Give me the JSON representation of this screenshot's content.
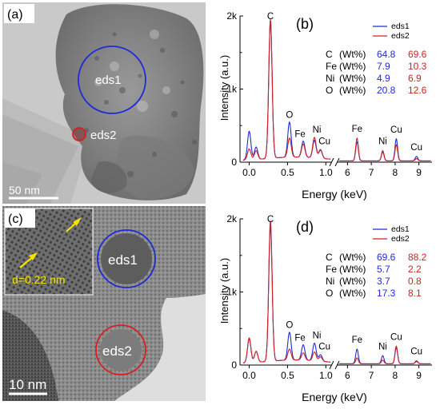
{
  "panels": {
    "a": {
      "label": "(a)",
      "scale_bar": "50 nm",
      "regions": [
        {
          "name": "eds1",
          "color": "#1f2bd6"
        },
        {
          "name": "eds2",
          "color": "#d62020"
        }
      ]
    },
    "c": {
      "label": "(c)",
      "scale_bar": "10 nm",
      "inset_text": "d=0.22 nm",
      "regions": [
        {
          "name": "eds1",
          "color": "#1f2bd6"
        },
        {
          "name": "eds2",
          "color": "#d62020"
        }
      ]
    }
  },
  "chart_data": [
    {
      "type": "line",
      "panel_label": "(b)",
      "xlabel": "Energy (keV)",
      "ylabel": "Intensity (a.u.)",
      "x_ticks": [
        "0.0",
        "0.5",
        "1.0",
        "6",
        "7",
        "8",
        "9"
      ],
      "y_ticks": [
        "0",
        "1k",
        "2k"
      ],
      "ylim": [
        0,
        2000
      ],
      "axis_break": true,
      "legend_position": "top-right",
      "series": [
        {
          "name": "eds1",
          "color": "#1f2bd6"
        },
        {
          "name": "eds2",
          "color": "#d62020"
        }
      ],
      "peaks": [
        {
          "label": "C",
          "energy": 0.277,
          "eds1": 1870,
          "eds2": 1900
        },
        {
          "label": "O",
          "energy": 0.525,
          "eds1": 480,
          "eds2": 260
        },
        {
          "label": "Fe",
          "energy": 0.705,
          "eds1": 220,
          "eds2": 180
        },
        {
          "label": "Ni",
          "energy": 0.851,
          "eds1": 240,
          "eds2": 280
        },
        {
          "label": "Cu",
          "energy": 0.93,
          "eds1": 120,
          "eds2": 110
        },
        {
          "label": "Fe",
          "energy": 6.4,
          "eds1": 260,
          "eds2": 310
        },
        {
          "label": "Ni",
          "energy": 7.48,
          "eds1": 120,
          "eds2": 140
        },
        {
          "label": "Cu",
          "energy": 8.05,
          "eds1": 300,
          "eds2": 220
        },
        {
          "label": "Cu",
          "energy": 8.9,
          "eds1": 60,
          "eds2": 30
        }
      ],
      "extra_peaks": [
        {
          "energy": 0.0,
          "eds1": 390,
          "eds2": 150
        },
        {
          "energy": 0.09,
          "eds1": 170,
          "eds2": 120
        }
      ],
      "composition": [
        {
          "element": "C",
          "unit": "(Wt%)",
          "eds1": "64.8",
          "eds2": "69.6"
        },
        {
          "element": "Fe",
          "unit": "(Wt%)",
          "eds1": "7.9",
          "eds2": "10.3"
        },
        {
          "element": "Ni",
          "unit": "(Wt%)",
          "eds1": "4.9",
          "eds2": "6.9"
        },
        {
          "element": "O",
          "unit": "(Wt%)",
          "eds1": "20.8",
          "eds2": "12.6"
        }
      ]
    },
    {
      "type": "line",
      "panel_label": "(d)",
      "xlabel": "Energy (keV)",
      "ylabel": "Intensity (a.u.)",
      "x_ticks": [
        "0.0",
        "0.5",
        "1.0",
        "6",
        "7",
        "8",
        "9"
      ],
      "y_ticks": [
        "0",
        "1k",
        "2k"
      ],
      "ylim": [
        0,
        2000
      ],
      "axis_break": true,
      "legend_position": "top-right",
      "series": [
        {
          "name": "eds1",
          "color": "#1f2bd6"
        },
        {
          "name": "eds2",
          "color": "#d62020"
        }
      ],
      "peaks": [
        {
          "label": "C",
          "energy": 0.277,
          "eds1": 1850,
          "eds2": 1920
        },
        {
          "label": "O",
          "energy": 0.525,
          "eds1": 380,
          "eds2": 150
        },
        {
          "label": "Fe",
          "energy": 0.705,
          "eds1": 210,
          "eds2": 100
        },
        {
          "label": "Ni",
          "energy": 0.851,
          "eds1": 240,
          "eds2": 120
        },
        {
          "label": "Cu",
          "energy": 0.93,
          "eds1": 90,
          "eds2": 60
        },
        {
          "label": "Fe",
          "energy": 6.4,
          "eds1": 200,
          "eds2": 80
        },
        {
          "label": "Ni",
          "energy": 7.48,
          "eds1": 110,
          "eds2": 50
        },
        {
          "label": "Cu",
          "energy": 8.05,
          "eds1": 220,
          "eds2": 240
        },
        {
          "label": "Cu",
          "energy": 8.9,
          "eds1": 40,
          "eds2": 30
        }
      ],
      "extra_peaks": [
        {
          "energy": 0.0,
          "eds1": 330,
          "eds2": 340
        },
        {
          "energy": 0.09,
          "eds1": 150,
          "eds2": 150
        }
      ],
      "composition": [
        {
          "element": "C",
          "unit": "(Wt%)",
          "eds1": "69.6",
          "eds2": "88.2"
        },
        {
          "element": "Fe",
          "unit": "(Wt%)",
          "eds1": "5.7",
          "eds2": "2.2"
        },
        {
          "element": "Ni",
          "unit": "(Wt%)",
          "eds1": "3.7",
          "eds2": "0.8"
        },
        {
          "element": "O",
          "unit": "(Wt%)",
          "eds1": "17.3",
          "eds2": "8.1"
        }
      ]
    }
  ]
}
